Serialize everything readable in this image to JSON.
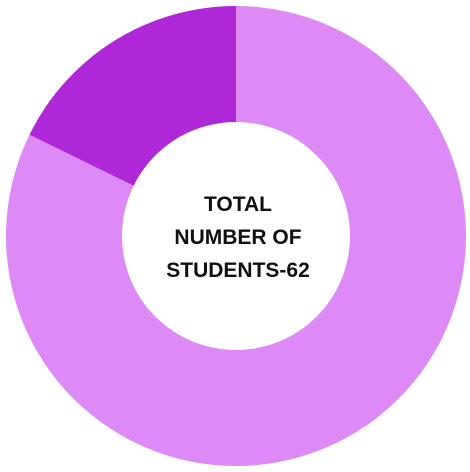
{
  "chart_data": {
    "type": "pie",
    "donut": true,
    "center_text": [
      "TOTAL",
      "NUMBER OF",
      "STUDENTS-62"
    ],
    "slices": [
      {
        "value": 51,
        "color": "#dd8af6"
      },
      {
        "value": 11,
        "color": "#ae28d8"
      }
    ],
    "start_angle_deg": 0,
    "direction": "clockwise",
    "legend": "none"
  }
}
